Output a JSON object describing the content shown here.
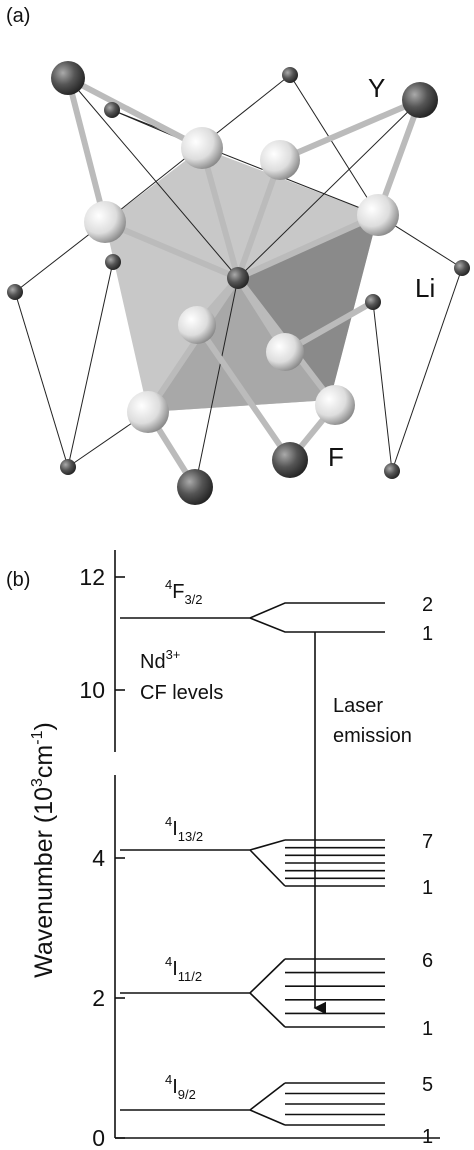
{
  "panel_a": {
    "label": "(a)",
    "atoms": {
      "y": "Y",
      "li": "Li",
      "f": "F"
    }
  },
  "panel_b": {
    "label": "(b)",
    "axis": {
      "label": {
        "main": "Wavenumber (10",
        "sup1": "3",
        "mid": "cm",
        "sup2": "-1",
        "end": ")"
      },
      "ticks_upper": [
        12,
        10
      ],
      "ticks_lower": [
        4,
        2,
        0
      ]
    },
    "ion": {
      "name": "Nd",
      "charge": "3+",
      "caption": "CF levels"
    },
    "transition": [
      "Laser",
      "emission"
    ],
    "levels": [
      {
        "sup": "4",
        "term": "F",
        "sub": "3/2",
        "top": "2",
        "bottom": "1"
      },
      {
        "sup": "4",
        "term": "I",
        "sub": "13/2",
        "top": "7",
        "bottom": "1"
      },
      {
        "sup": "4",
        "term": "I",
        "sub": "11/2",
        "top": "6",
        "bottom": "1"
      },
      {
        "sup": "4",
        "term": "I",
        "sub": "9/2",
        "top": "5",
        "bottom": "1"
      }
    ]
  }
}
